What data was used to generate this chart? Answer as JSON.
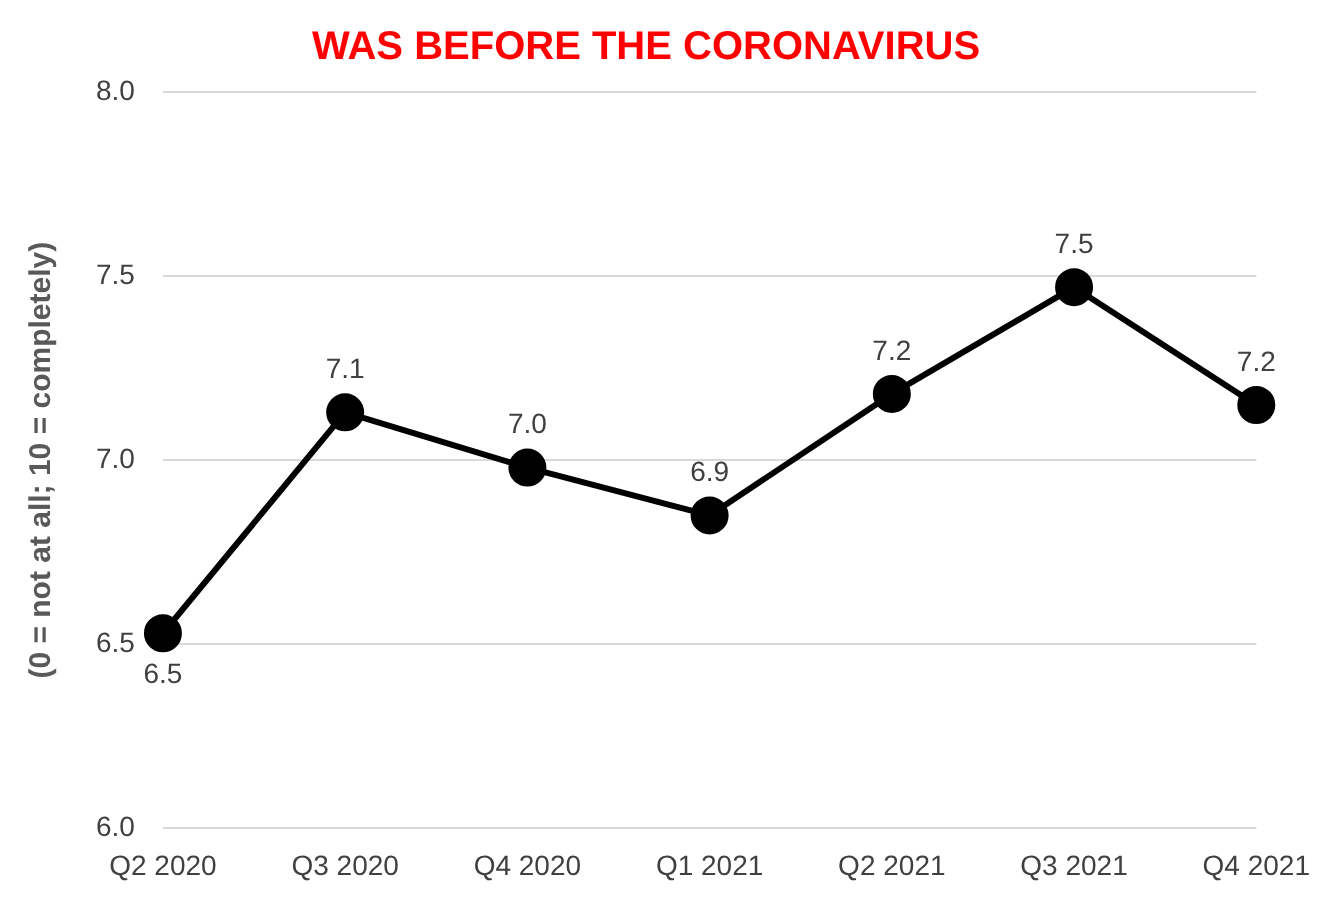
{
  "chart_data": {
    "type": "line",
    "title": "WAS BEFORE THE CORONAVIRUS",
    "ylabel": "(0 = not at all; 10 = completely)",
    "categories": [
      "Q2 2020",
      "Q3 2020",
      "Q4 2020",
      "Q1 2021",
      "Q2 2021",
      "Q3 2021",
      "Q4 2021"
    ],
    "series": [
      {
        "color": "#000000",
        "values": [
          6.53,
          7.13,
          6.98,
          6.85,
          7.18,
          7.47,
          7.15
        ],
        "value_labels": [
          "6.5",
          "7.1",
          "7.0",
          "6.9",
          "7.2",
          "7.5",
          "7.2"
        ]
      }
    ],
    "ylim": [
      6.0,
      8.0
    ],
    "yticks": [
      {
        "value": 6.0,
        "label": "6.0"
      },
      {
        "value": 6.5,
        "label": "6.5"
      },
      {
        "value": 7.0,
        "label": "7.0"
      },
      {
        "value": 7.5,
        "label": "7.5"
      },
      {
        "value": 8.0,
        "label": "8.0"
      }
    ],
    "grid": "y",
    "legend": false,
    "marker": "circle",
    "line_style": "solid"
  }
}
